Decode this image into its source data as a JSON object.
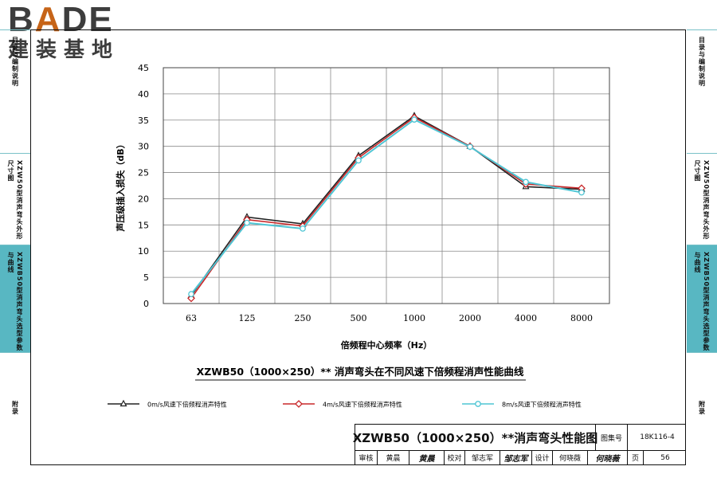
{
  "logo": {
    "text_latin": "BADE",
    "text_cn": "建装基地"
  },
  "sidebar_left": [
    {
      "label": "目录与编制说明",
      "active": false
    },
    {
      "label": "XZW50型消声弯头外形尺寸图",
      "active": false
    },
    {
      "label": "XZWB50型消声弯头选型参数与曲线",
      "active": true
    },
    {
      "label": "附录",
      "active": false
    }
  ],
  "sidebar_right": [
    {
      "label": "目录与编制说明",
      "active": false
    },
    {
      "label": "XZW50型消声弯头外形尺寸图",
      "active": false
    },
    {
      "label": "XZWB50型消声弯头选型参数与曲线",
      "active": true
    },
    {
      "label": "附录",
      "active": false
    }
  ],
  "chart_data": {
    "type": "line",
    "title": "XZWB50（1000×250）** 消声弯头在不同风速下倍频程消声性能曲线",
    "xlabel": "倍频程中心频率（Hz）",
    "ylabel": "声压级插入损失（dB）",
    "categories": [
      "63",
      "125",
      "250",
      "500",
      "1000",
      "2000",
      "4000",
      "8000"
    ],
    "ylim": [
      0,
      45
    ],
    "yticks": [
      0,
      5,
      10,
      15,
      20,
      25,
      30,
      35,
      40,
      45
    ],
    "grid": true,
    "legend_position": "bottom",
    "series": [
      {
        "name": "0m/s风速下倍频程消声特性",
        "color": "#222222",
        "marker": "triangle",
        "values": [
          1.5,
          16.5,
          15.2,
          28.2,
          35.8,
          30.0,
          22.3,
          21.8
        ]
      },
      {
        "name": "4m/s风速下倍频程消声特性",
        "color": "#c8282a",
        "marker": "diamond",
        "values": [
          1.0,
          16.0,
          14.8,
          27.8,
          35.5,
          30.0,
          22.8,
          22.0
        ]
      },
      {
        "name": "8m/s风速下倍频程消声特性",
        "color": "#4ec5d4",
        "marker": "circle",
        "values": [
          1.8,
          15.4,
          14.3,
          27.3,
          35.1,
          29.9,
          23.2,
          21.2
        ]
      }
    ]
  },
  "title_block": {
    "title": "XZWB50（1000×250）**消声弯头性能图",
    "atlas_no_label": "图集号",
    "atlas_no": "18K116-4",
    "review_label": "审核",
    "review_name": "黄晨",
    "review_sign": "黄晨",
    "proof_label": "校对",
    "proof_name": "邹志军",
    "proof_sign": "邹志军",
    "design_label": "设计",
    "design_name": "何晓薇",
    "design_sign": "何晓薇",
    "page_label": "页",
    "page": "56"
  }
}
